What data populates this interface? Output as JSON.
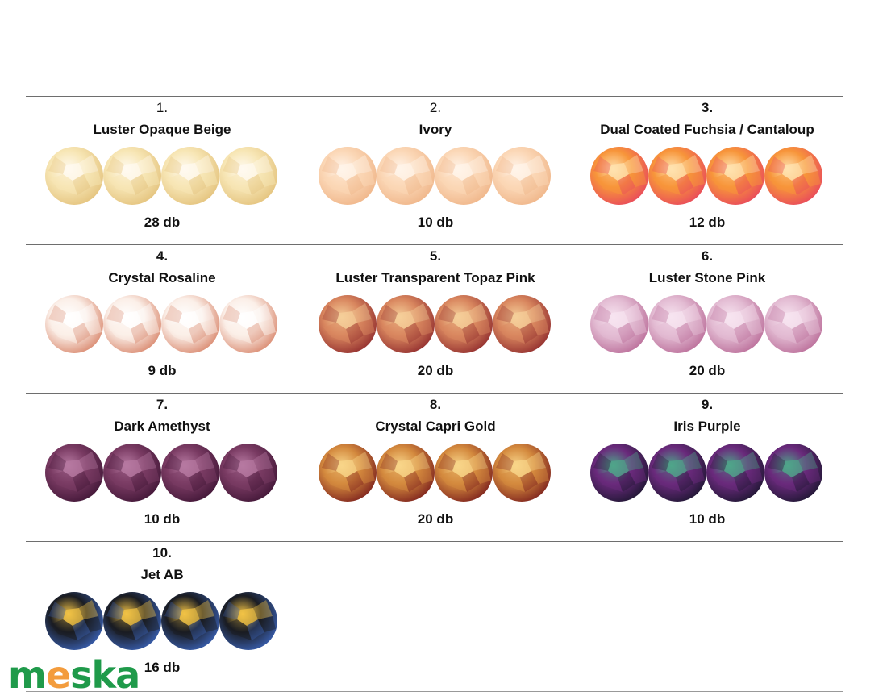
{
  "logo": {
    "letters": [
      "m",
      "e",
      "s",
      "k",
      "a"
    ],
    "colors": [
      "#1f9a4a",
      "#f39c3d",
      "#1f9a4a",
      "#1f9a4a",
      "#1f9a4a"
    ]
  },
  "items": [
    {
      "number": "1.",
      "name": "Luster Opaque Beige",
      "qty": "28 db",
      "colors": [
        "#f7e6b5",
        "#e3c17a",
        "#fffaf0"
      ]
    },
    {
      "number": "2.",
      "name": "Ivory",
      "qty": "10 db",
      "colors": [
        "#fbd7b6",
        "#efb487",
        "#fff4ea"
      ]
    },
    {
      "number": "3.",
      "name": "Dual Coated Fuchsia / Cantaloup",
      "qty": "12 db",
      "colors": [
        "#f7953a",
        "#e8455e",
        "#ffe3b0"
      ]
    },
    {
      "number": "4.",
      "name": "Crystal Rosaline",
      "qty": "9 db",
      "colors": [
        "#fbefe8",
        "#d8856a",
        "#ffffff"
      ]
    },
    {
      "number": "5.",
      "name": "Luster Transparent Topaz Pink",
      "qty": "20 db",
      "colors": [
        "#d9875f",
        "#8f2a2c",
        "#f5cf9a"
      ]
    },
    {
      "number": "6.",
      "name": "Luster Stone Pink",
      "qty": "20 db",
      "colors": [
        "#e3bcd3",
        "#b96b97",
        "#f7e4f0"
      ]
    },
    {
      "number": "7.",
      "name": "Dark Amethyst",
      "qty": "10 db",
      "colors": [
        "#7a3b63",
        "#3f1535",
        "#b77aa2"
      ]
    },
    {
      "number": "8.",
      "name": "Crystal Capri Gold",
      "qty": "20 db",
      "colors": [
        "#d48a3e",
        "#7a1e1c",
        "#f8d58a"
      ]
    },
    {
      "number": "9.",
      "name": "Iris Purple",
      "qty": "10 db",
      "colors": [
        "#6a2a7c",
        "#1c1630",
        "#4fa58a"
      ]
    },
    {
      "number": "10.",
      "name": "Jet AB",
      "qty": "16 db",
      "colors": [
        "#1a1c22",
        "#3b63b8",
        "#f2c346"
      ]
    }
  ]
}
